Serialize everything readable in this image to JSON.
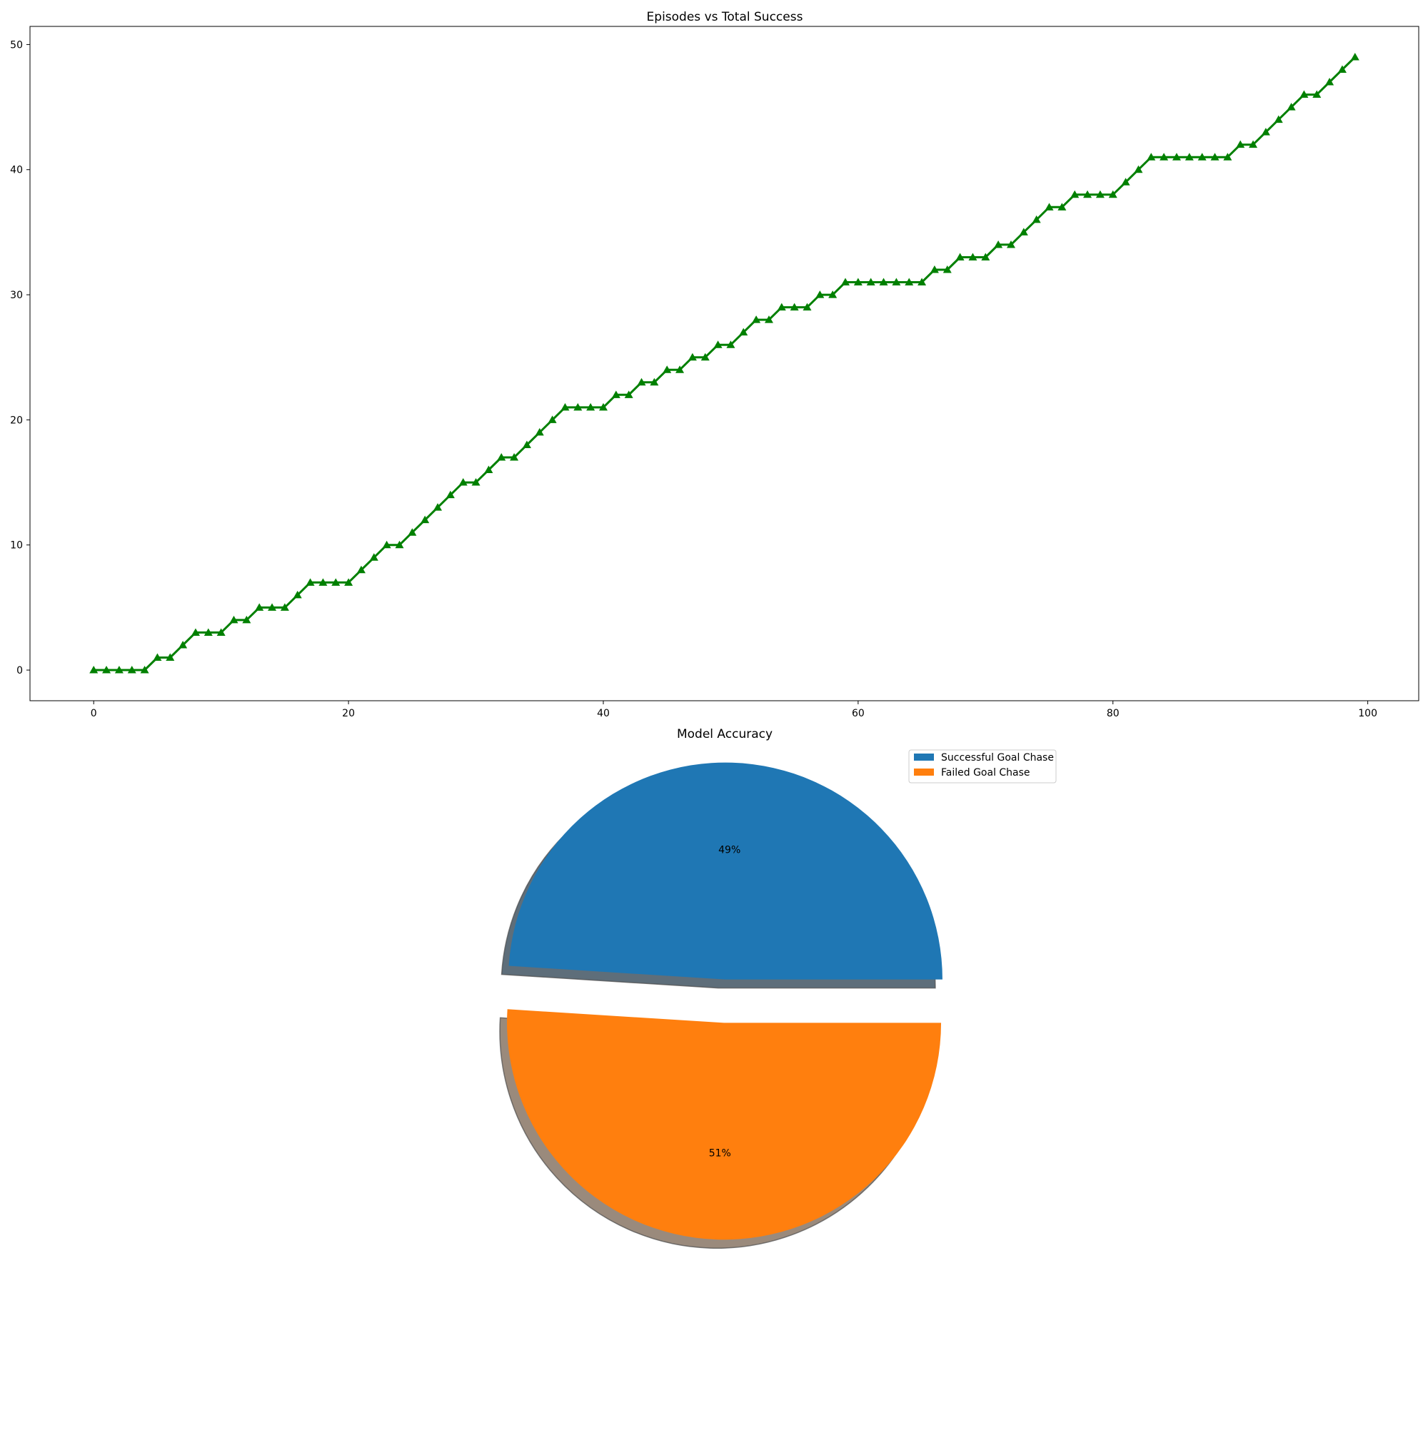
{
  "chart_data": [
    {
      "type": "line",
      "title": "Episodes vs Total Success",
      "xlabel": "",
      "ylabel": "",
      "xlim": [
        -5,
        104
      ],
      "ylim": [
        -2.45,
        51.45
      ],
      "x_ticks": [
        0,
        20,
        40,
        60,
        80,
        100
      ],
      "y_ticks": [
        0,
        10,
        20,
        30,
        40,
        50
      ],
      "grid": false,
      "series": [
        {
          "color": "#008000",
          "marker": "triangle-up",
          "x": [
            0,
            1,
            2,
            3,
            4,
            5,
            6,
            7,
            8,
            9,
            10,
            11,
            12,
            13,
            14,
            15,
            16,
            17,
            18,
            19,
            20,
            21,
            22,
            23,
            24,
            25,
            26,
            27,
            28,
            29,
            30,
            31,
            32,
            33,
            34,
            35,
            36,
            37,
            38,
            39,
            40,
            41,
            42,
            43,
            44,
            45,
            46,
            47,
            48,
            49,
            50,
            51,
            52,
            53,
            54,
            55,
            56,
            57,
            58,
            59,
            60,
            61,
            62,
            63,
            64,
            65,
            66,
            67,
            68,
            69,
            70,
            71,
            72,
            73,
            74,
            75,
            76,
            77,
            78,
            79,
            80,
            81,
            82,
            83,
            84,
            85,
            86,
            87,
            88,
            89,
            90,
            91,
            92,
            93,
            94,
            95,
            96,
            97,
            98,
            99
          ],
          "values": [
            0,
            0,
            0,
            0,
            0,
            1,
            1,
            2,
            3,
            3,
            3,
            4,
            4,
            5,
            5,
            5,
            6,
            7,
            7,
            7,
            7,
            8,
            9,
            10,
            10,
            11,
            12,
            13,
            14,
            15,
            15,
            16,
            17,
            17,
            18,
            19,
            20,
            21,
            21,
            21,
            21,
            22,
            22,
            23,
            23,
            24,
            24,
            25,
            25,
            26,
            26,
            27,
            28,
            28,
            29,
            29,
            29,
            30,
            30,
            31,
            31,
            31,
            31,
            31,
            31,
            31,
            32,
            32,
            33,
            33,
            33,
            34,
            34,
            35,
            36,
            37,
            37,
            38,
            38,
            38,
            38,
            39,
            40,
            41,
            41,
            41,
            41,
            41,
            41,
            41,
            42,
            42,
            43,
            44,
            45,
            46,
            46,
            47,
            48,
            49
          ]
        }
      ]
    },
    {
      "type": "pie",
      "title": "Model Accuracy",
      "legend_position": "upper-right",
      "shadow": true,
      "slices": [
        {
          "label": "Successful Goal Chase",
          "value": 49,
          "pct_label": "49%",
          "color": "#1f77b4",
          "explode": true
        },
        {
          "label": "Failed Goal Chase",
          "value": 51,
          "pct_label": "51%",
          "color": "#ff7f0e",
          "explode": true
        }
      ]
    }
  ]
}
